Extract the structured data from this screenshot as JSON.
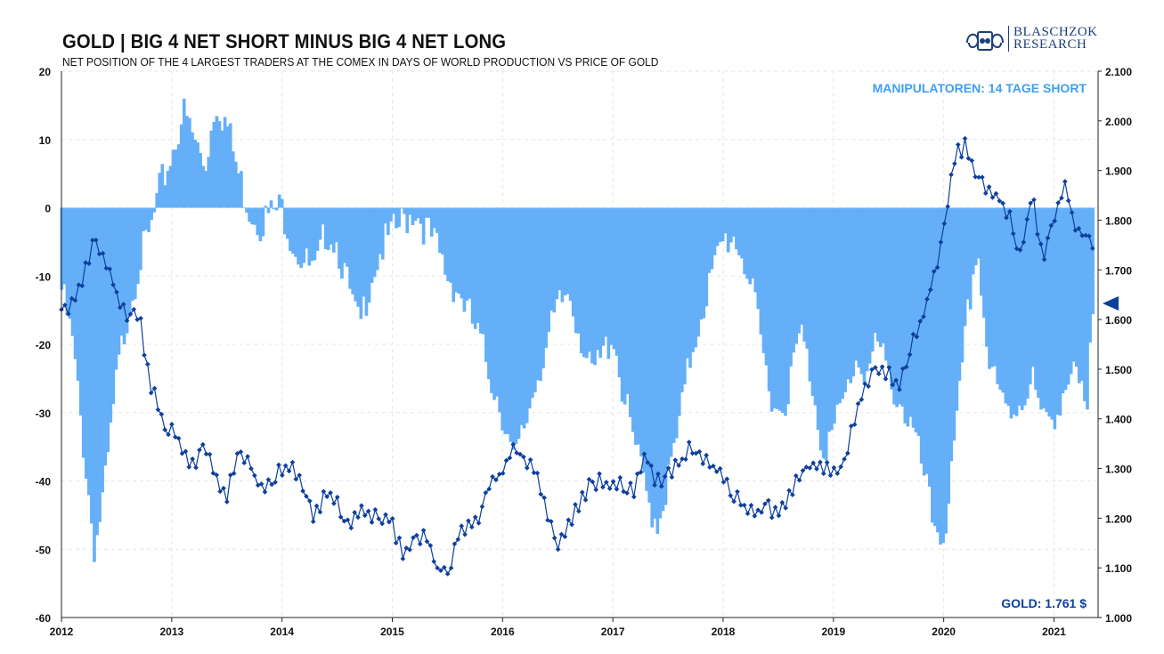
{
  "title": "GOLD | BIG 4 NET SHORT MINUS BIG 4 NET LONG",
  "subtitle": "NET POSITION OF THE 4 LARGEST TRADERS AT THE COMEX IN DAYS OF WORLD PRODUCTION VS PRICE OF GOLD",
  "logo": {
    "line1": "BLASCHZOK",
    "line2": "RESEARCH"
  },
  "colors": {
    "bars": "#64aff8",
    "gold_line": "#0d3f9c",
    "annotation": "#3f9ff3",
    "gold_label": "#0d3f9c"
  },
  "chart_data": {
    "type": "bar+line",
    "annotations": {
      "top_right": "MANIPULATOREN: 14 TAGE SHORT",
      "bottom_right": "GOLD: 1.761 $"
    },
    "x_ticks": [
      "2012",
      "2013",
      "2014",
      "2015",
      "2016",
      "2017",
      "2018",
      "2019",
      "2020",
      "2021"
    ],
    "x_range": [
      2012.0,
      2021.4
    ],
    "left_axis": {
      "range": [
        -60,
        20
      ],
      "ticks": [
        "20",
        "10",
        "0",
        "-10",
        "-20",
        "-30",
        "-40",
        "-50",
        "-60"
      ],
      "values": [
        20,
        10,
        0,
        -10,
        -20,
        -30,
        -40,
        -50,
        -60
      ]
    },
    "right_axis": {
      "range": [
        1000,
        2100
      ],
      "ticks": [
        "2.100",
        "2.000",
        "1.900",
        "1.800",
        "1.700",
        "1.600",
        "1.500",
        "1.400",
        "1.300",
        "1.200",
        "1.100",
        "1.000"
      ],
      "values": [
        2100,
        2000,
        1900,
        1800,
        1700,
        1600,
        1500,
        1400,
        1300,
        1200,
        1100,
        1000
      ]
    },
    "grid": true,
    "series": [
      {
        "role": "net_position_days",
        "axis": "left",
        "style": "bars",
        "x": [
          2012.0,
          2012.1,
          2012.2,
          2012.3,
          2012.4,
          2012.5,
          2012.6,
          2012.7,
          2012.8,
          2012.9,
          2013.0,
          2013.1,
          2013.2,
          2013.3,
          2013.4,
          2013.5,
          2013.6,
          2013.7,
          2013.8,
          2013.9,
          2014.0,
          2014.1,
          2014.2,
          2014.3,
          2014.4,
          2014.5,
          2014.6,
          2014.7,
          2014.8,
          2014.9,
          2015.0,
          2015.1,
          2015.2,
          2015.3,
          2015.4,
          2015.5,
          2015.6,
          2015.7,
          2015.8,
          2015.9,
          2016.0,
          2016.1,
          2016.2,
          2016.3,
          2016.4,
          2016.5,
          2016.6,
          2016.7,
          2016.8,
          2016.9,
          2017.0,
          2017.1,
          2017.2,
          2017.3,
          2017.4,
          2017.5,
          2017.6,
          2017.7,
          2017.8,
          2017.9,
          2018.0,
          2018.1,
          2018.2,
          2018.3,
          2018.4,
          2018.5,
          2018.6,
          2018.7,
          2018.8,
          2018.9,
          2019.0,
          2019.1,
          2019.2,
          2019.3,
          2019.4,
          2019.5,
          2019.6,
          2019.7,
          2019.8,
          2019.9,
          2020.0,
          2020.1,
          2020.2,
          2020.3,
          2020.4,
          2020.5,
          2020.6,
          2020.7,
          2020.8,
          2020.9,
          2021.0,
          2021.1,
          2021.2,
          2021.3,
          2021.35
        ],
        "values": [
          -12,
          -20,
          -35,
          -50,
          -40,
          -25,
          -15,
          -8,
          -4,
          3,
          8,
          14,
          10,
          6,
          16,
          12,
          5,
          0,
          -2,
          -1,
          0,
          -5,
          -8,
          -10,
          -3,
          -5,
          -12,
          -18,
          -10,
          -6,
          -4,
          -2,
          0,
          -3,
          -6,
          -10,
          -12,
          -16,
          -20,
          -25,
          -30,
          -38,
          -32,
          -25,
          -20,
          -15,
          -12,
          -18,
          -25,
          -22,
          -18,
          -28,
          -35,
          -42,
          -46,
          -40,
          -32,
          -22,
          -15,
          -10,
          -5,
          -4,
          -8,
          -16,
          -25,
          -30,
          -26,
          -18,
          -25,
          -35,
          -33,
          -28,
          -22,
          -24,
          -20,
          -25,
          -28,
          -32,
          -38,
          -46,
          -48,
          -35,
          -18,
          -5,
          -22,
          -28,
          -30,
          -28,
          -25,
          -32,
          -30,
          -26,
          -25,
          -31,
          -14
        ]
      },
      {
        "role": "gold_price",
        "axis": "right",
        "style": "line-markers",
        "x": [
          2012.0,
          2012.1,
          2012.2,
          2012.3,
          2012.4,
          2012.5,
          2012.6,
          2012.7,
          2012.8,
          2012.9,
          2013.0,
          2013.1,
          2013.2,
          2013.3,
          2013.4,
          2013.5,
          2013.6,
          2013.7,
          2013.8,
          2013.9,
          2014.0,
          2014.1,
          2014.2,
          2014.3,
          2014.4,
          2014.5,
          2014.6,
          2014.7,
          2014.8,
          2014.9,
          2015.0,
          2015.1,
          2015.2,
          2015.3,
          2015.4,
          2015.5,
          2015.6,
          2015.7,
          2015.8,
          2015.9,
          2016.0,
          2016.1,
          2016.2,
          2016.3,
          2016.4,
          2016.5,
          2016.6,
          2016.7,
          2016.8,
          2016.9,
          2017.0,
          2017.1,
          2017.2,
          2017.3,
          2017.4,
          2017.5,
          2017.6,
          2017.7,
          2017.8,
          2017.9,
          2018.0,
          2018.1,
          2018.2,
          2018.3,
          2018.4,
          2018.5,
          2018.6,
          2018.7,
          2018.8,
          2018.9,
          2019.0,
          2019.1,
          2019.2,
          2019.3,
          2019.4,
          2019.5,
          2019.6,
          2019.7,
          2019.8,
          2019.9,
          2020.0,
          2020.1,
          2020.2,
          2020.3,
          2020.4,
          2020.5,
          2020.6,
          2020.7,
          2020.8,
          2020.9,
          2021.0,
          2021.1,
          2021.2,
          2021.3,
          2021.35
        ],
        "values": [
          1620,
          1630,
          1680,
          1770,
          1720,
          1650,
          1600,
          1610,
          1480,
          1400,
          1380,
          1330,
          1310,
          1350,
          1280,
          1240,
          1330,
          1310,
          1260,
          1280,
          1300,
          1300,
          1250,
          1200,
          1250,
          1230,
          1190,
          1220,
          1210,
          1200,
          1190,
          1120,
          1150,
          1180,
          1100,
          1090,
          1170,
          1180,
          1200,
          1280,
          1290,
          1340,
          1320,
          1290,
          1220,
          1150,
          1190,
          1230,
          1270,
          1280,
          1260,
          1270,
          1260,
          1330,
          1270,
          1290,
          1310,
          1340,
          1320,
          1300,
          1290,
          1250,
          1220,
          1210,
          1220,
          1210,
          1250,
          1280,
          1310,
          1300,
          1290,
          1310,
          1410,
          1470,
          1500,
          1490,
          1470,
          1550,
          1600,
          1680,
          1770,
          1930,
          1950,
          1880,
          1860,
          1850,
          1800,
          1730,
          1850,
          1720,
          1800,
          1870,
          1780,
          1770,
          1760
        ]
      }
    ]
  }
}
